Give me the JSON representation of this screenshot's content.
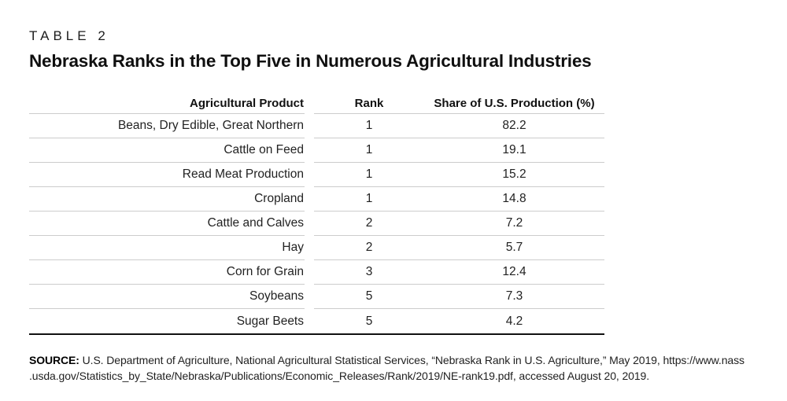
{
  "header": {
    "kicker": "TABLE 2",
    "title": "Nebraska Ranks in the Top Five in Numerous Agricultural Industries"
  },
  "table": {
    "columns": [
      "Agricultural Product",
      "Rank",
      "Share of U.S. Production (%)"
    ],
    "rows": [
      {
        "product": "Beans, Dry Edible, Great Northern",
        "rank": "1",
        "share": "82.2"
      },
      {
        "product": "Cattle on Feed",
        "rank": "1",
        "share": "19.1"
      },
      {
        "product": "Read Meat Production",
        "rank": "1",
        "share": "15.2"
      },
      {
        "product": "Cropland",
        "rank": "1",
        "share": "14.8"
      },
      {
        "product": "Cattle and Calves",
        "rank": "2",
        "share": "7.2"
      },
      {
        "product": "Hay",
        "rank": "2",
        "share": "5.7"
      },
      {
        "product": "Corn for Grain",
        "rank": "3",
        "share": "12.4"
      },
      {
        "product": "Soybeans",
        "rank": "5",
        "share": "7.3"
      },
      {
        "product": "Sugar Beets",
        "rank": "5",
        "share": "4.2"
      }
    ]
  },
  "source": {
    "label": "SOURCE:",
    "line1": " U.S. Department of Agriculture, National Agricultural Statistical Services, “Nebraska Rank in U.S. Agriculture,” May 2019, https://www.nass",
    "line2": ".usda.gov/Statistics_by_State/Nebraska/Publications/Economic_Releases/Rank/2019/NE-rank19.pdf, accessed August 20, 2019."
  },
  "colors": {
    "rule_light": "#cccccc",
    "rule_dark": "#111111",
    "text": "#1f1f1f",
    "background": "#ffffff"
  }
}
